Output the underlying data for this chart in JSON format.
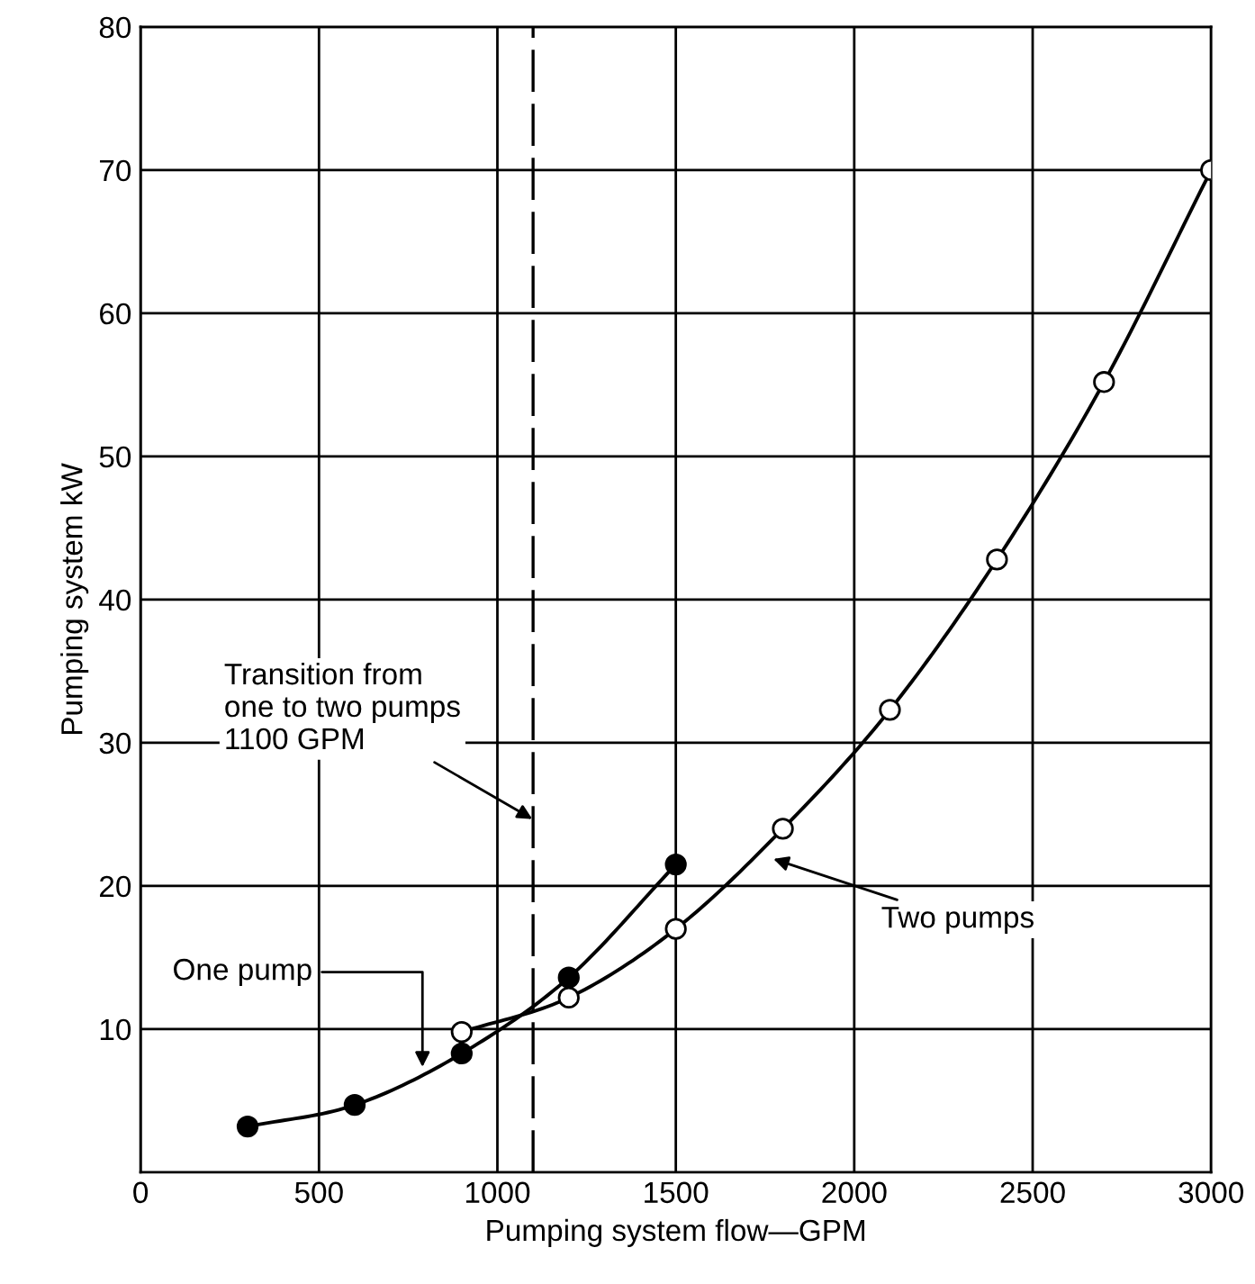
{
  "chart_data": {
    "type": "line",
    "xlabel": "Pumping system flow—GPM",
    "ylabel": "Pumping system kW",
    "xlim": [
      0,
      3000
    ],
    "xticks": [
      0,
      500,
      1000,
      1500,
      2000,
      2500,
      3000
    ],
    "ylim": [
      0,
      80
    ],
    "yticks": [
      10,
      20,
      30,
      40,
      50,
      60,
      70,
      80
    ],
    "grid": true,
    "marker": "circle",
    "line_style": "solid",
    "series": [
      {
        "color": "#000000",
        "x": [
          300,
          600,
          900,
          1200,
          1500
        ],
        "values": [
          3.2,
          4.7,
          8.3,
          13.6,
          21.5
        ]
      },
      {
        "color": "#ffffff",
        "x": [
          900,
          1200,
          1500,
          1800,
          2100,
          2400,
          2700,
          3000
        ],
        "values": [
          9.8,
          12.2,
          17,
          24,
          32.3,
          42.8,
          55.2,
          70
        ]
      }
    ],
    "ref_lines": [
      {
        "axis": "x",
        "value": 1100,
        "color": "#000000",
        "line_style": "dashed"
      }
    ],
    "annotations": [
      {
        "text": "Transition from\none to two pumps\n1100 GPM",
        "x": 1110,
        "y": 24.5
      },
      {
        "text": "One pump",
        "x": 790,
        "y": 7
      },
      {
        "text": "Two pumps",
        "x": 1760,
        "y": 22
      }
    ]
  }
}
